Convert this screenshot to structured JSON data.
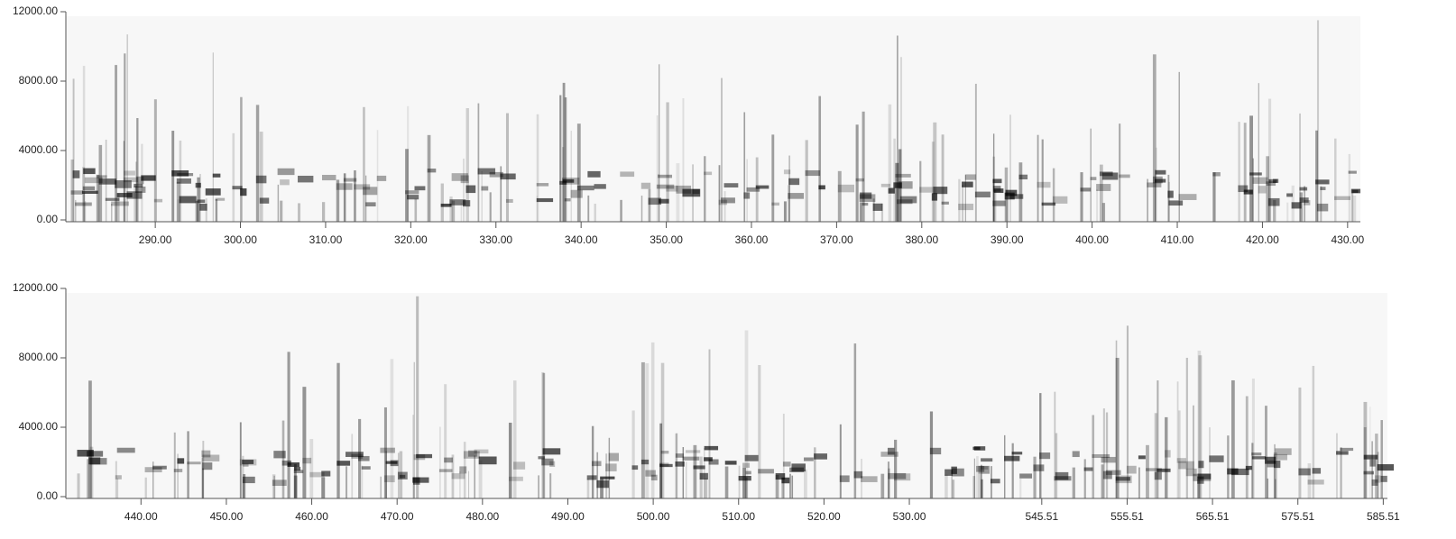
{
  "chart_data": [
    {
      "type": "spectrogram",
      "xlim": [
        279.5,
        431.5
      ],
      "xticks": [
        {
          "value": 290,
          "label": "290.00"
        },
        {
          "value": 300,
          "label": "300.00"
        },
        {
          "value": 310,
          "label": "310.00"
        },
        {
          "value": 320,
          "label": "320.00"
        },
        {
          "value": 330,
          "label": "330.00"
        },
        {
          "value": 340,
          "label": "340.00"
        },
        {
          "value": 350,
          "label": "350.00"
        },
        {
          "value": 360,
          "label": "360.00"
        },
        {
          "value": 370,
          "label": "370.00"
        },
        {
          "value": 380,
          "label": "380.00"
        },
        {
          "value": 390,
          "label": "390.00"
        },
        {
          "value": 400,
          "label": "400.00"
        },
        {
          "value": 410,
          "label": "410.00"
        },
        {
          "value": 420,
          "label": "420.00"
        },
        {
          "value": 430,
          "label": "430.00"
        }
      ],
      "ylim": [
        0,
        12000
      ],
      "yticks": [
        {
          "value": 0,
          "label": "0.00"
        },
        {
          "value": 4000,
          "label": "4000.00"
        },
        {
          "value": 8000,
          "label": "8000.00"
        },
        {
          "value": 12000,
          "label": "12000.00"
        }
      ]
    },
    {
      "type": "spectrogram",
      "xlim": [
        431.2,
        586.0
      ],
      "xticks": [
        {
          "value": 440,
          "label": "440.00"
        },
        {
          "value": 450,
          "label": "450.00"
        },
        {
          "value": 460,
          "label": "460.00"
        },
        {
          "value": 470,
          "label": "470.00"
        },
        {
          "value": 480,
          "label": "480.00"
        },
        {
          "value": 490,
          "label": "490.00"
        },
        {
          "value": 500,
          "label": "500.00"
        },
        {
          "value": 510,
          "label": "510.00"
        },
        {
          "value": 520,
          "label": "520.00"
        },
        {
          "value": 530,
          "label": "530.00"
        },
        {
          "value": 545.51,
          "label": "545.51"
        },
        {
          "value": 555.51,
          "label": "555.51"
        },
        {
          "value": 565.51,
          "label": "565.51"
        },
        {
          "value": 575.51,
          "label": "575.51"
        },
        {
          "value": 585.51,
          "label": "585.51"
        }
      ],
      "ylim": [
        0,
        12000
      ],
      "yticks": [
        {
          "value": 0,
          "label": "0.00"
        },
        {
          "value": 4000,
          "label": "4000.00"
        },
        {
          "value": 8000,
          "label": "8000.00"
        },
        {
          "value": 12000,
          "label": "12000.00"
        }
      ]
    }
  ]
}
